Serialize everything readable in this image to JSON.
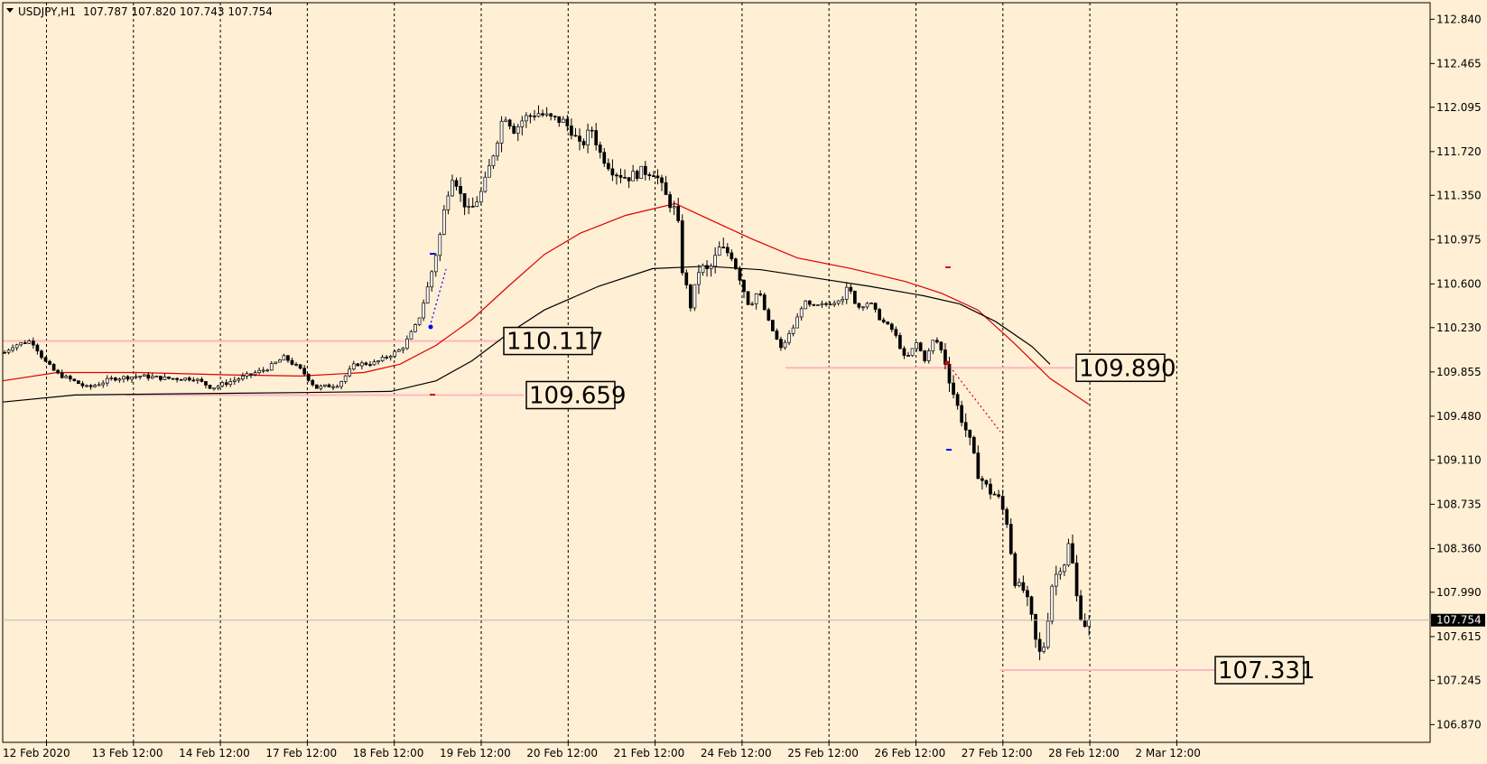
{
  "header": {
    "symbol": "USDJPY,H1",
    "ohlc": "107.787 107.820 107.743 107.754"
  },
  "chart_data": {
    "type": "candlestick",
    "symbol": "USDJPY",
    "timeframe": "H1",
    "ylim": [
      106.72,
      112.98
    ],
    "y_ticks": [
      112.84,
      112.465,
      112.095,
      111.72,
      111.35,
      110.975,
      110.6,
      110.23,
      109.855,
      109.48,
      109.11,
      108.735,
      108.36,
      107.99,
      107.615,
      107.245,
      106.87
    ],
    "x_labels": [
      "12 Feb 2020",
      "13 Feb 12:00",
      "14 Feb 12:00",
      "17 Feb 12:00",
      "18 Feb 12:00",
      "19 Feb 12:00",
      "20 Feb 12:00",
      "21 Feb 12:00",
      "24 Feb 12:00",
      "25 Feb 12:00",
      "26 Feb 12:00",
      "27 Feb 12:00",
      "28 Feb 12:00",
      "2 Mar 12:00"
    ],
    "grid": "vertical dashed",
    "current_price": 107.754,
    "price_levels": [
      {
        "value": 110.117,
        "label": "110.117"
      },
      {
        "value": 109.659,
        "label": "109.659"
      },
      {
        "value": 109.89,
        "label": "109.890"
      },
      {
        "value": 107.331,
        "label": "107.331"
      }
    ],
    "close_path": [
      [
        0,
        110.02
      ],
      [
        10,
        110.08
      ],
      [
        20,
        110.1
      ],
      [
        30,
        110.12
      ],
      [
        36,
        110.05
      ],
      [
        44,
        109.95
      ],
      [
        58,
        109.84
      ],
      [
        76,
        109.78
      ],
      [
        92,
        109.72
      ],
      [
        120,
        109.8
      ],
      [
        150,
        109.82
      ],
      [
        180,
        109.8
      ],
      [
        210,
        109.8
      ],
      [
        230,
        109.72
      ],
      [
        260,
        109.8
      ],
      [
        290,
        109.88
      ],
      [
        310,
        109.98
      ],
      [
        330,
        109.86
      ],
      [
        345,
        109.72
      ],
      [
        370,
        109.75
      ],
      [
        388,
        109.92
      ],
      [
        410,
        109.93
      ],
      [
        440,
        110.05
      ],
      [
        458,
        110.28
      ],
      [
        470,
        110.6
      ],
      [
        482,
        111.0
      ],
      [
        490,
        111.35
      ],
      [
        497,
        111.55
      ],
      [
        505,
        111.35
      ],
      [
        515,
        111.2
      ],
      [
        530,
        111.4
      ],
      [
        545,
        111.8
      ],
      [
        553,
        112.05
      ],
      [
        565,
        111.9
      ],
      [
        575,
        112.0
      ],
      [
        590,
        112.05
      ],
      [
        605,
        112.0
      ],
      [
        618,
        111.98
      ],
      [
        628,
        111.9
      ],
      [
        638,
        111.75
      ],
      [
        650,
        111.92
      ],
      [
        660,
        111.7
      ],
      [
        675,
        111.55
      ],
      [
        690,
        111.5
      ],
      [
        705,
        111.55
      ],
      [
        720,
        111.55
      ],
      [
        735,
        111.3
      ],
      [
        745,
        111.2
      ],
      [
        750,
        110.75
      ],
      [
        760,
        110.4
      ],
      [
        770,
        110.75
      ],
      [
        780,
        110.7
      ],
      [
        792,
        110.9
      ],
      [
        805,
        110.85
      ],
      [
        815,
        110.65
      ],
      [
        825,
        110.4
      ],
      [
        835,
        110.55
      ],
      [
        845,
        110.3
      ],
      [
        860,
        110.05
      ],
      [
        875,
        110.25
      ],
      [
        885,
        110.45
      ],
      [
        895,
        110.4
      ],
      [
        905,
        110.42
      ],
      [
        920,
        110.45
      ],
      [
        935,
        110.55
      ],
      [
        945,
        110.4
      ],
      [
        958,
        110.45
      ],
      [
        970,
        110.3
      ],
      [
        985,
        110.2
      ],
      [
        998,
        109.95
      ],
      [
        1010,
        110.1
      ],
      [
        1020,
        109.95
      ],
      [
        1030,
        110.15
      ],
      [
        1040,
        110.0
      ],
      [
        1048,
        109.75
      ],
      [
        1058,
        109.5
      ],
      [
        1068,
        109.3
      ],
      [
        1078,
        109.0
      ],
      [
        1090,
        108.85
      ],
      [
        1100,
        108.8
      ],
      [
        1110,
        108.6
      ],
      [
        1120,
        108.05
      ],
      [
        1130,
        108.0
      ],
      [
        1138,
        107.75
      ],
      [
        1145,
        107.45
      ],
      [
        1152,
        107.55
      ],
      [
        1160,
        108.05
      ],
      [
        1168,
        108.2
      ],
      [
        1175,
        108.25
      ],
      [
        1180,
        108.45
      ],
      [
        1186,
        108.0
      ],
      [
        1192,
        107.8
      ],
      [
        1198,
        107.7
      ],
      [
        1203,
        107.754
      ]
    ],
    "series": [
      {
        "name": "",
        "color": "#dd0000",
        "values": [
          [
            0,
            109.78
          ],
          [
            60,
            109.85
          ],
          [
            150,
            109.85
          ],
          [
            250,
            109.83
          ],
          [
            330,
            109.82
          ],
          [
            400,
            109.85
          ],
          [
            440,
            109.92
          ],
          [
            480,
            110.08
          ],
          [
            520,
            110.3
          ],
          [
            560,
            110.58
          ],
          [
            600,
            110.85
          ],
          [
            640,
            111.03
          ],
          [
            690,
            111.18
          ],
          [
            745,
            111.28
          ],
          [
            790,
            111.12
          ],
          [
            830,
            110.98
          ],
          [
            880,
            110.82
          ],
          [
            940,
            110.73
          ],
          [
            1000,
            110.62
          ],
          [
            1040,
            110.52
          ],
          [
            1080,
            110.38
          ],
          [
            1120,
            110.1
          ],
          [
            1160,
            109.8
          ],
          [
            1203,
            109.58
          ]
        ]
      },
      {
        "name": "",
        "color": "#000000",
        "values": [
          [
            0,
            109.6
          ],
          [
            80,
            109.66
          ],
          [
            200,
            109.67
          ],
          [
            330,
            109.68
          ],
          [
            430,
            109.69
          ],
          [
            480,
            109.78
          ],
          [
            520,
            109.95
          ],
          [
            560,
            110.18
          ],
          [
            600,
            110.38
          ],
          [
            660,
            110.58
          ],
          [
            720,
            110.73
          ],
          [
            780,
            110.75
          ],
          [
            840,
            110.72
          ],
          [
            900,
            110.65
          ],
          [
            960,
            110.58
          ],
          [
            1020,
            110.5
          ],
          [
            1060,
            110.43
          ],
          [
            1100,
            110.28
          ],
          [
            1140,
            110.07
          ],
          [
            1160,
            109.92
          ]
        ]
      }
    ]
  }
}
